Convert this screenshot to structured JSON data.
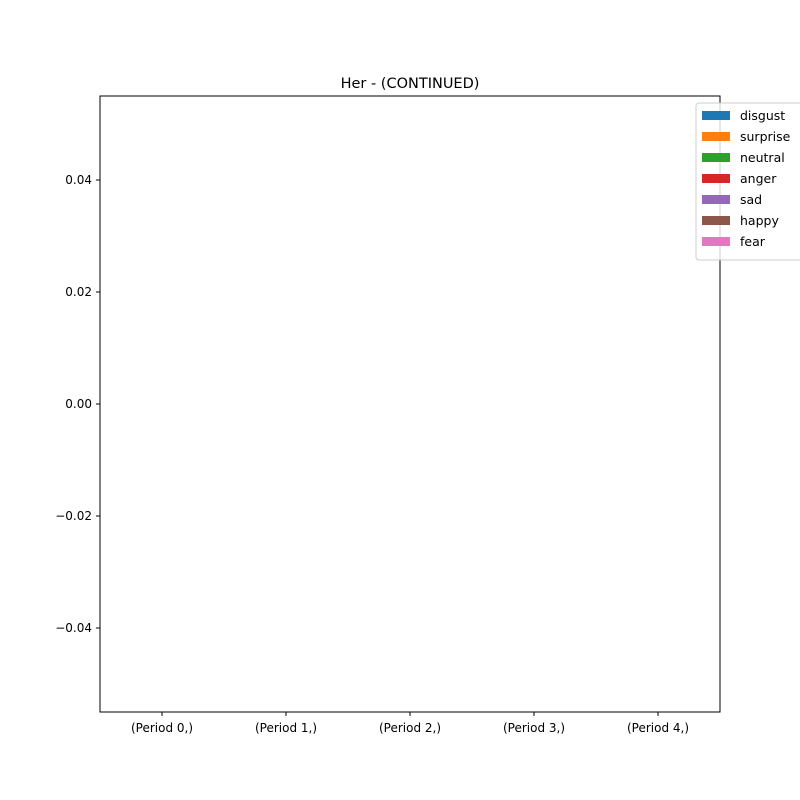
{
  "chart_data": {
    "type": "bar",
    "title": "Her - (CONTINUED)",
    "xlabel": "",
    "ylabel": "",
    "categories": [
      "(Period 0,)",
      "(Period 1,)",
      "(Period 2,)",
      "(Period 3,)",
      "(Period 4,)"
    ],
    "series": [
      {
        "name": "disgust",
        "color": "#1f77b4",
        "values": [
          0,
          0,
          0,
          0,
          0
        ]
      },
      {
        "name": "surprise",
        "color": "#ff7f0e",
        "values": [
          0,
          0,
          0,
          0,
          0
        ]
      },
      {
        "name": "neutral",
        "color": "#2ca02c",
        "values": [
          0,
          0,
          0,
          0,
          0
        ]
      },
      {
        "name": "anger",
        "color": "#d62728",
        "values": [
          0,
          0,
          0,
          0,
          0
        ]
      },
      {
        "name": "sad",
        "color": "#9467bd",
        "values": [
          0,
          0,
          0,
          0,
          0
        ]
      },
      {
        "name": "happy",
        "color": "#8c564b",
        "values": [
          0,
          0,
          0,
          0,
          0
        ]
      },
      {
        "name": "fear",
        "color": "#e377c2",
        "values": [
          0,
          0,
          0,
          0,
          0
        ]
      }
    ],
    "ylim": [
      -0.055,
      0.055
    ],
    "yticks": [
      -0.04,
      -0.02,
      0.0,
      0.02,
      0.04
    ],
    "ytick_labels": [
      "−0.04",
      "−0.02",
      "0.00",
      "0.02",
      "0.04"
    ],
    "grid": false,
    "legend_position": "upper-right"
  }
}
